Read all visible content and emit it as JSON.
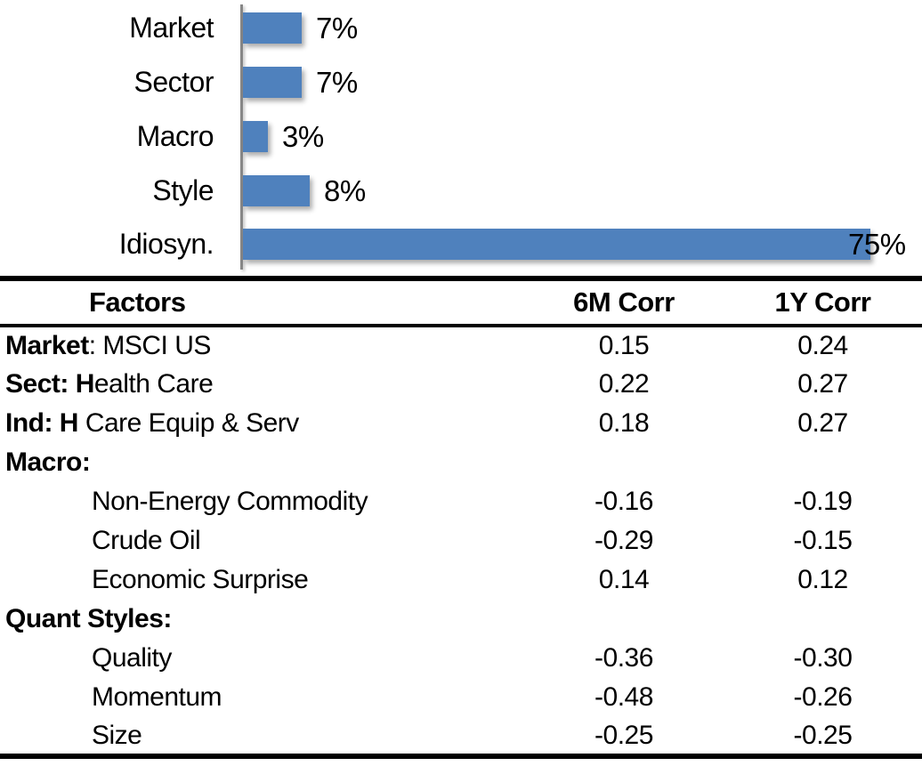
{
  "chart_data": {
    "type": "bar",
    "orientation": "horizontal",
    "title": "",
    "xlabel": "",
    "ylabel": "",
    "categories": [
      "Market",
      "Sector",
      "Macro",
      "Style",
      "Idiosyn."
    ],
    "values": [
      7,
      7,
      3,
      8,
      75
    ],
    "value_labels": [
      "7%",
      "7%",
      "3%",
      "8%",
      "75%"
    ],
    "xlim": [
      0,
      80
    ],
    "grid": false,
    "legend": "none",
    "data_label_position": "outside-end",
    "bar_color": "#4F81BD",
    "axis_color": "#878787",
    "label_color": "#000000"
  },
  "table": {
    "headers": {
      "factors": "Factors",
      "corr6m": "6M Corr",
      "corr1y": "1Y Corr"
    },
    "rows": [
      {
        "bold": "Market",
        "rest": ": MSCI US",
        "indent": false,
        "c6m": "0.15",
        "c1y": "0.24"
      },
      {
        "bold": "Sect: H",
        "rest": "ealth Care",
        "indent": false,
        "c6m": "0.22",
        "c1y": "0.27"
      },
      {
        "bold": "Ind: H",
        "rest": " Care Equip & Serv",
        "indent": false,
        "c6m": "0.18",
        "c1y": "0.27"
      },
      {
        "bold": "Macro:",
        "rest": "",
        "indent": false,
        "c6m": "",
        "c1y": ""
      },
      {
        "bold": "",
        "rest": "Non-Energy Commodity",
        "indent": true,
        "c6m": "-0.16",
        "c1y": "-0.19"
      },
      {
        "bold": "",
        "rest": "Crude Oil",
        "indent": true,
        "c6m": "-0.29",
        "c1y": "-0.15"
      },
      {
        "bold": "",
        "rest": "Economic Surprise",
        "indent": true,
        "c6m": "0.14",
        "c1y": "0.12"
      },
      {
        "bold": "Quant Styles:",
        "rest": "",
        "indent": false,
        "c6m": "",
        "c1y": ""
      },
      {
        "bold": "",
        "rest": "Quality",
        "indent": true,
        "c6m": "-0.36",
        "c1y": "-0.30"
      },
      {
        "bold": "",
        "rest": "Momentum",
        "indent": true,
        "c6m": "-0.48",
        "c1y": "-0.26"
      },
      {
        "bold": "",
        "rest": "Size",
        "indent": true,
        "c6m": "-0.25",
        "c1y": "-0.25"
      }
    ]
  }
}
